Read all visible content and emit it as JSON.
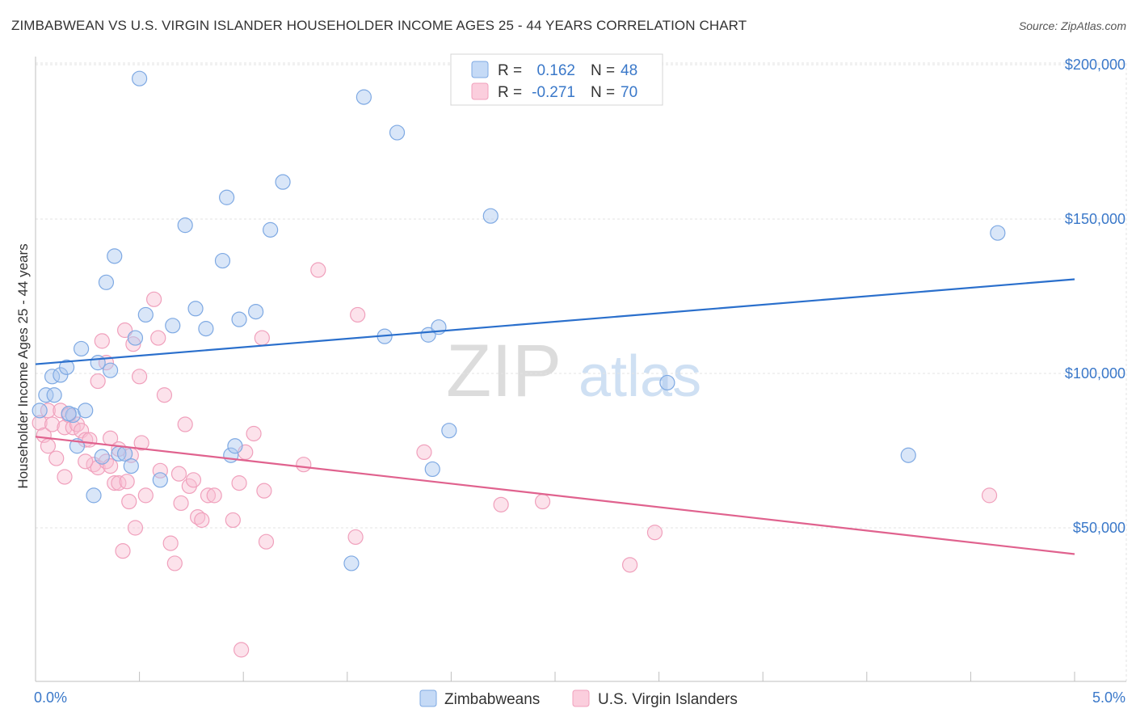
{
  "header": {
    "title": "ZIMBABWEAN VS U.S. VIRGIN ISLANDER HOUSEHOLDER INCOME AGES 25 - 44 YEARS CORRELATION CHART",
    "source": "Source: ZipAtlas.com"
  },
  "watermark": {
    "zip": "ZIP",
    "atlas": "atlas"
  },
  "legend_stats": {
    "r_label": "R =",
    "n_label": "N =",
    "rows": [
      {
        "r": "0.162",
        "n": "48"
      },
      {
        "r": "-0.271",
        "n": "70"
      }
    ]
  },
  "chart_data": {
    "type": "scatter",
    "title": "ZIMBABWEAN VS U.S. VIRGIN ISLANDER HOUSEHOLDER INCOME AGES 25 - 44 YEARS CORRELATION CHART",
    "xlabel": "",
    "ylabel": "Householder Income Ages 25 - 44 years",
    "xlim": [
      0,
      5
    ],
    "ylim": [
      5000,
      210000
    ],
    "x_tick_labels": [
      "0.0%",
      "5.0%"
    ],
    "y_ticks": [
      50000,
      100000,
      150000,
      200000
    ],
    "y_tick_labels": [
      "$50,000",
      "$100,000",
      "$150,000",
      "$200,000"
    ],
    "grid": true,
    "legend_position": "bottom-center",
    "colors": {
      "zimbabweans": "#6fa3e6",
      "zimbabweans_line": "#2a6fcc",
      "virgin_islanders": "#f29bb8",
      "virgin_islanders_line": "#e0628e",
      "axis_text": "#3a78c9"
    },
    "series": [
      {
        "name": "Zimbabweans",
        "r": 0.162,
        "n": 48,
        "trend": {
          "x": [
            0,
            5
          ],
          "y": [
            103000,
            130500
          ]
        },
        "points": [
          {
            "x": 0.02,
            "y": 88000
          },
          {
            "x": 0.05,
            "y": 93000
          },
          {
            "x": 0.09,
            "y": 93000
          },
          {
            "x": 0.08,
            "y": 99000
          },
          {
            "x": 0.12,
            "y": 99500
          },
          {
            "x": 0.15,
            "y": 102000
          },
          {
            "x": 0.22,
            "y": 108000
          },
          {
            "x": 0.18,
            "y": 86500
          },
          {
            "x": 0.24,
            "y": 88000
          },
          {
            "x": 0.2,
            "y": 76500
          },
          {
            "x": 0.28,
            "y": 60500
          },
          {
            "x": 0.3,
            "y": 103500
          },
          {
            "x": 0.32,
            "y": 73000
          },
          {
            "x": 0.34,
            "y": 129500
          },
          {
            "x": 0.36,
            "y": 101000
          },
          {
            "x": 0.38,
            "y": 138000
          },
          {
            "x": 0.4,
            "y": 74000
          },
          {
            "x": 0.43,
            "y": 74000
          },
          {
            "x": 0.46,
            "y": 70000
          },
          {
            "x": 0.48,
            "y": 111500
          },
          {
            "x": 0.5,
            "y": 195500
          },
          {
            "x": 0.53,
            "y": 119000
          },
          {
            "x": 0.6,
            "y": 65500
          },
          {
            "x": 0.66,
            "y": 115500
          },
          {
            "x": 0.72,
            "y": 148000
          },
          {
            "x": 0.77,
            "y": 121000
          },
          {
            "x": 0.82,
            "y": 114500
          },
          {
            "x": 0.9,
            "y": 136500
          },
          {
            "x": 0.92,
            "y": 157000
          },
          {
            "x": 0.94,
            "y": 73500
          },
          {
            "x": 0.96,
            "y": 76500
          },
          {
            "x": 0.98,
            "y": 117500
          },
          {
            "x": 1.06,
            "y": 120000
          },
          {
            "x": 1.13,
            "y": 146500
          },
          {
            "x": 1.19,
            "y": 162000
          },
          {
            "x": 1.52,
            "y": 38500
          },
          {
            "x": 1.58,
            "y": 189500
          },
          {
            "x": 1.68,
            "y": 112000
          },
          {
            "x": 1.74,
            "y": 178000
          },
          {
            "x": 1.89,
            "y": 112500
          },
          {
            "x": 1.91,
            "y": 69000
          },
          {
            "x": 1.94,
            "y": 115000
          },
          {
            "x": 1.99,
            "y": 81500
          },
          {
            "x": 2.19,
            "y": 151000
          },
          {
            "x": 3.04,
            "y": 97000
          },
          {
            "x": 4.2,
            "y": 73500
          },
          {
            "x": 4.63,
            "y": 145500
          },
          {
            "x": 0.16,
            "y": 87000
          }
        ]
      },
      {
        "name": "U.S. Virgin Islanders",
        "r": -0.271,
        "n": 70,
        "trend": {
          "x": [
            0,
            5
          ],
          "y": [
            79500,
            41500
          ]
        },
        "points": [
          {
            "x": 0.02,
            "y": 84000
          },
          {
            "x": 0.04,
            "y": 80000
          },
          {
            "x": 0.06,
            "y": 88000
          },
          {
            "x": 0.06,
            "y": 76500
          },
          {
            "x": 0.08,
            "y": 83500
          },
          {
            "x": 0.1,
            "y": 72500
          },
          {
            "x": 0.12,
            "y": 88000
          },
          {
            "x": 0.14,
            "y": 82500
          },
          {
            "x": 0.14,
            "y": 66500
          },
          {
            "x": 0.16,
            "y": 86500
          },
          {
            "x": 0.18,
            "y": 82500
          },
          {
            "x": 0.2,
            "y": 83500
          },
          {
            "x": 0.22,
            "y": 81500
          },
          {
            "x": 0.24,
            "y": 78500
          },
          {
            "x": 0.26,
            "y": 78500
          },
          {
            "x": 0.28,
            "y": 70500
          },
          {
            "x": 0.3,
            "y": 69500
          },
          {
            "x": 0.3,
            "y": 97500
          },
          {
            "x": 0.32,
            "y": 110500
          },
          {
            "x": 0.34,
            "y": 103500
          },
          {
            "x": 0.34,
            "y": 71500
          },
          {
            "x": 0.36,
            "y": 70000
          },
          {
            "x": 0.36,
            "y": 79000
          },
          {
            "x": 0.38,
            "y": 64500
          },
          {
            "x": 0.4,
            "y": 64500
          },
          {
            "x": 0.4,
            "y": 75500
          },
          {
            "x": 0.42,
            "y": 42500
          },
          {
            "x": 0.43,
            "y": 114000
          },
          {
            "x": 0.44,
            "y": 65000
          },
          {
            "x": 0.45,
            "y": 58500
          },
          {
            "x": 0.47,
            "y": 109500
          },
          {
            "x": 0.48,
            "y": 50000
          },
          {
            "x": 0.5,
            "y": 99000
          },
          {
            "x": 0.51,
            "y": 77500
          },
          {
            "x": 0.53,
            "y": 60500
          },
          {
            "x": 0.57,
            "y": 124000
          },
          {
            "x": 0.59,
            "y": 111500
          },
          {
            "x": 0.6,
            "y": 68500
          },
          {
            "x": 0.62,
            "y": 93000
          },
          {
            "x": 0.65,
            "y": 45000
          },
          {
            "x": 0.67,
            "y": 38500
          },
          {
            "x": 0.69,
            "y": 67500
          },
          {
            "x": 0.7,
            "y": 58000
          },
          {
            "x": 0.72,
            "y": 83500
          },
          {
            "x": 0.74,
            "y": 63500
          },
          {
            "x": 0.76,
            "y": 65500
          },
          {
            "x": 0.78,
            "y": 53500
          },
          {
            "x": 0.8,
            "y": 52500
          },
          {
            "x": 0.83,
            "y": 60500
          },
          {
            "x": 0.86,
            "y": 60500
          },
          {
            "x": 0.95,
            "y": 52500
          },
          {
            "x": 0.98,
            "y": 64500
          },
          {
            "x": 0.99,
            "y": 10500
          },
          {
            "x": 1.01,
            "y": 74500
          },
          {
            "x": 1.05,
            "y": 80500
          },
          {
            "x": 1.09,
            "y": 111500
          },
          {
            "x": 1.1,
            "y": 62000
          },
          {
            "x": 1.11,
            "y": 45500
          },
          {
            "x": 1.29,
            "y": 70500
          },
          {
            "x": 1.36,
            "y": 133500
          },
          {
            "x": 1.54,
            "y": 47000
          },
          {
            "x": 1.55,
            "y": 119000
          },
          {
            "x": 1.87,
            "y": 74500
          },
          {
            "x": 2.24,
            "y": 57500
          },
          {
            "x": 2.44,
            "y": 58500
          },
          {
            "x": 2.86,
            "y": 38000
          },
          {
            "x": 2.98,
            "y": 48500
          },
          {
            "x": 4.59,
            "y": 60500
          },
          {
            "x": 0.24,
            "y": 71500
          },
          {
            "x": 0.46,
            "y": 73500
          }
        ]
      }
    ]
  },
  "legend": {
    "items": [
      {
        "label": "Zimbabweans"
      },
      {
        "label": "U.S. Virgin Islanders"
      }
    ]
  }
}
